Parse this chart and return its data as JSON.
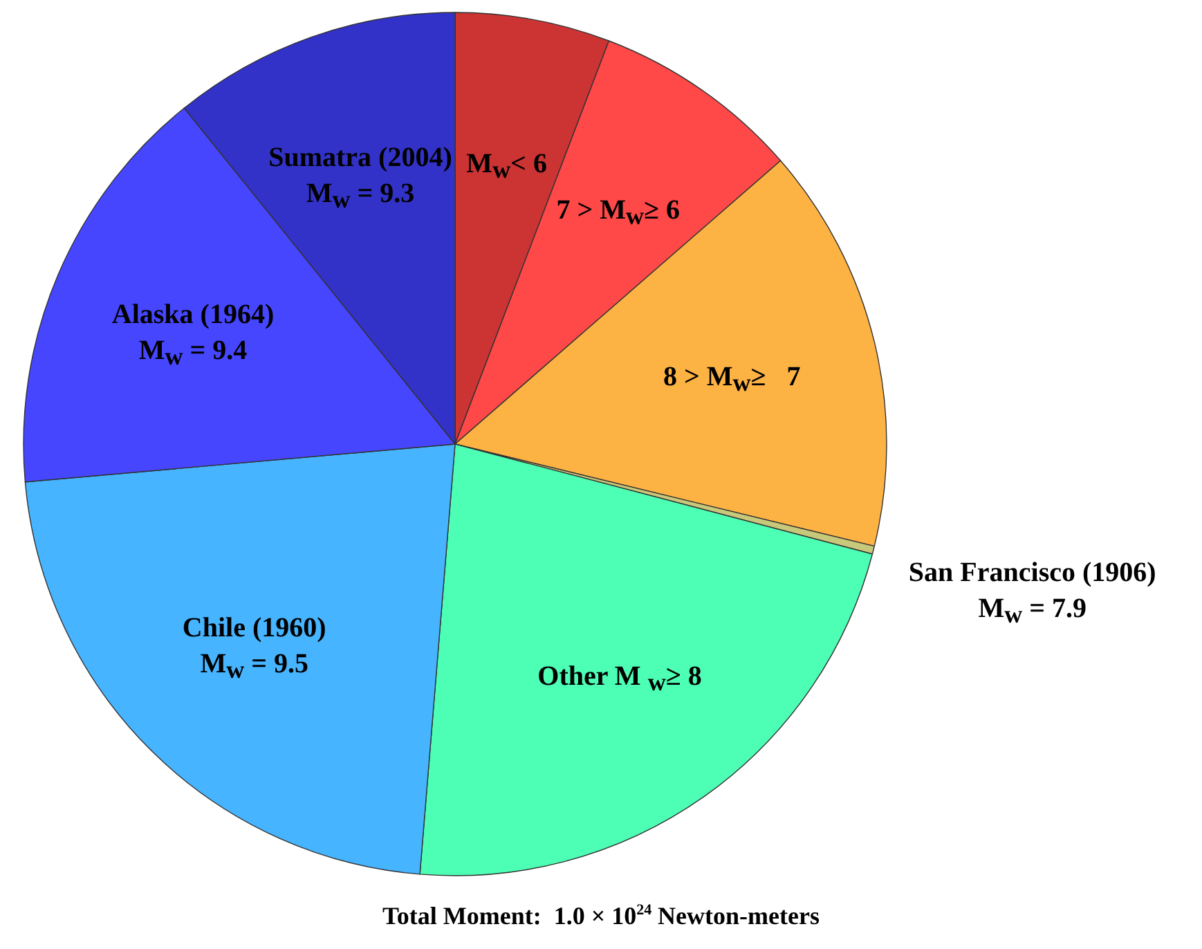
{
  "chart_data": {
    "type": "pie",
    "categories": [
      "M$_{w}$< 6",
      "7 > M$_{w}$≥ 6",
      "8 > M$_{w}$≥   7",
      "San Francisco (1906)\nM$_{w}$ = 7.9",
      "Other M $_{w}$≥ 8",
      "Chile (1960)\nM$_{w}$ = 9.5",
      "Alaska (1964)\nM$_{w}$ = 9.4",
      "Sumatra (2004)\nM$_{w}$ = 9.3"
    ],
    "values": [
      5.8,
      7.8,
      15.2,
      0.3,
      22.2,
      22.3,
      15.6,
      10.8
    ],
    "colors": [
      "#cc3333",
      "#ff4848",
      "#fdb244",
      "#c8c87a",
      "#4cffb4",
      "#46b4ff",
      "#4646ff",
      "#3232c8"
    ],
    "annotations": [
      "Total Moment:  1.0 × 10$^{24}$ Newton-meters"
    ]
  }
}
